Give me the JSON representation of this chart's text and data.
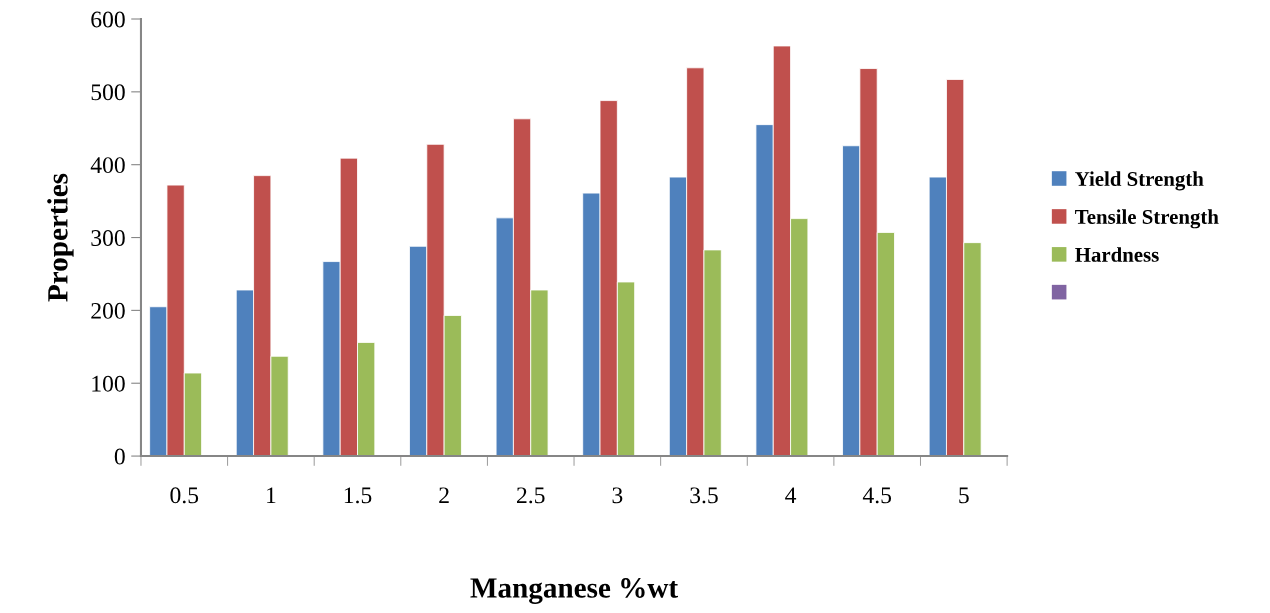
{
  "chart_data": {
    "type": "bar",
    "xlabel": "Manganese %wt",
    "ylabel": "Properties",
    "categories": [
      "0.5",
      "1",
      "1.5",
      "2",
      "2.5",
      "3",
      "3.5",
      "4",
      "4.5",
      "5"
    ],
    "series": [
      {
        "name": "Yield Strength",
        "color": "#4f81bd",
        "values": [
          205,
          228,
          267,
          288,
          327,
          361,
          383,
          455,
          426,
          383
        ]
      },
      {
        "name": "Tensile Strength",
        "color": "#c0504d",
        "values": [
          372,
          385,
          409,
          428,
          463,
          488,
          533,
          563,
          532,
          517
        ]
      },
      {
        "name": "Hardness",
        "color": "#9bbb59",
        "values": [
          114,
          137,
          156,
          193,
          228,
          239,
          283,
          326,
          307,
          293
        ]
      },
      {
        "color": "#8064a2",
        "values": [
          null,
          null,
          null,
          null,
          null,
          null,
          null,
          null,
          null,
          null
        ]
      }
    ],
    "ylim": [
      0,
      600
    ],
    "yticks": [
      0,
      100,
      200,
      300,
      400,
      500,
      600
    ],
    "grid": false,
    "legend": "right"
  }
}
